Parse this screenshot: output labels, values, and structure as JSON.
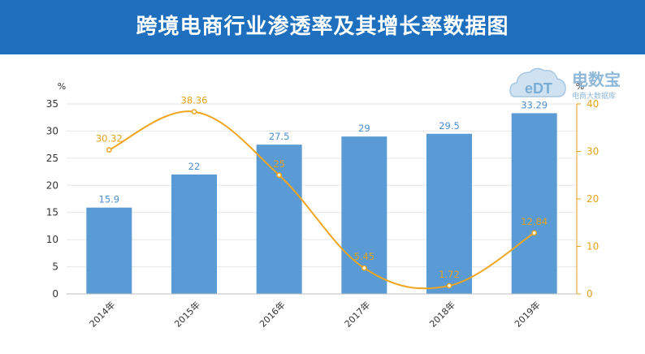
{
  "header": {
    "title": "跨境电商行业渗透率及其增长率数据图",
    "bg_color": "#1f6fbf"
  },
  "logo": {
    "text": "电数宝",
    "sub": "电商大数据库",
    "mark": "eDT"
  },
  "chart_data": {
    "type": "bar",
    "categories": [
      "2014年",
      "2015年",
      "2016年",
      "2017年",
      "2018年",
      "2019年"
    ],
    "series": [
      {
        "kind": "bar",
        "axis": "left",
        "color": "#5b9bd5",
        "values": [
          15.9,
          22,
          27.5,
          29,
          29.5,
          33.29
        ],
        "labels": [
          "15.9",
          "22",
          "27.5",
          "29",
          "29.5",
          "33.29"
        ]
      },
      {
        "kind": "line",
        "axis": "right",
        "color": "#f0a51e",
        "values": [
          30.32,
          38.36,
          25,
          5.45,
          1.72,
          12.84
        ],
        "labels": [
          "30.32",
          "38.36",
          "25",
          "5.45",
          "1.72",
          "12.84"
        ]
      }
    ],
    "left_unit": "%",
    "right_unit": "%",
    "ylim_left": [
      0,
      35
    ],
    "yticks_left": [
      0,
      5,
      10,
      15,
      20,
      25,
      30,
      35
    ],
    "ylim_right": [
      0,
      40
    ],
    "yticks_right": [
      0,
      10,
      20,
      30,
      40
    ],
    "grid": true,
    "legend": "none"
  }
}
